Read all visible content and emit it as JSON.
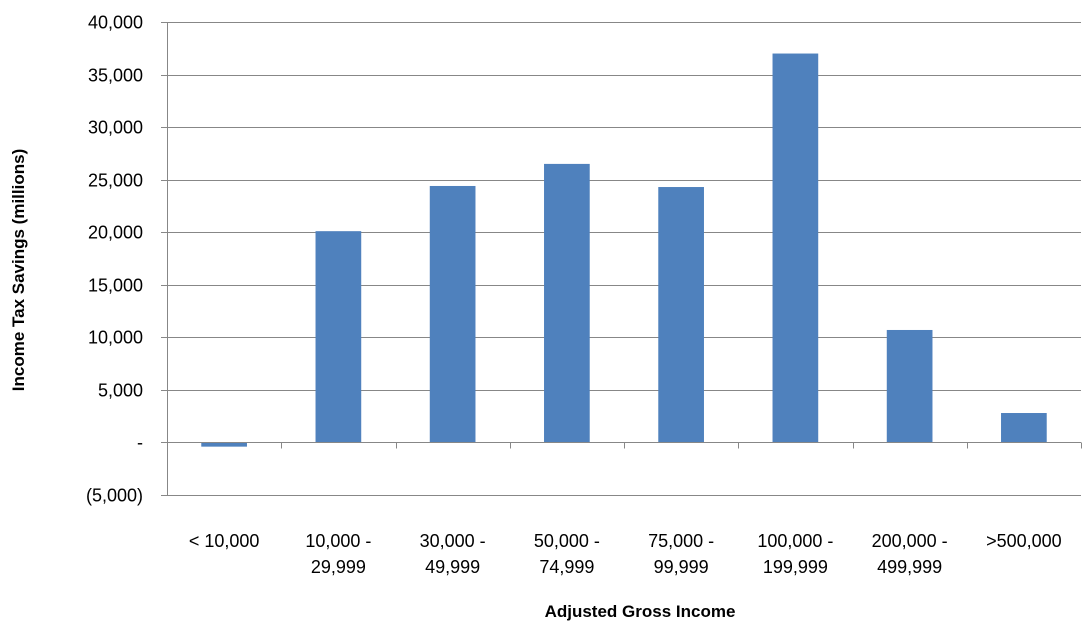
{
  "chart_data": {
    "type": "bar",
    "title": "",
    "xlabel": "Adjusted Gross Income",
    "ylabel": "Income Tax Savings (millions)",
    "categories": [
      [
        "< 10,000"
      ],
      [
        "10,000 -",
        "29,999"
      ],
      [
        "30,000 -",
        "49,999"
      ],
      [
        "50,000 -",
        "74,999"
      ],
      [
        "75,000 -",
        "99,999"
      ],
      [
        "100,000 -",
        "199,999"
      ],
      [
        "200,000 -",
        "499,999"
      ],
      [
        ">500,000"
      ]
    ],
    "values": [
      -400,
      20100,
      24400,
      26500,
      24300,
      37000,
      10700,
      2800
    ],
    "ylim": [
      -5000,
      40000
    ],
    "yticks": [
      40000,
      35000,
      30000,
      25000,
      20000,
      15000,
      10000,
      5000,
      0,
      -5000
    ],
    "ytick_labels": [
      "40,000",
      "35,000",
      "30,000",
      "25,000",
      "20,000",
      "15,000",
      "10,000",
      "5,000",
      "-",
      "(5,000)"
    ],
    "grid": true,
    "legend": "none",
    "bar_color": "#4f81bd"
  }
}
